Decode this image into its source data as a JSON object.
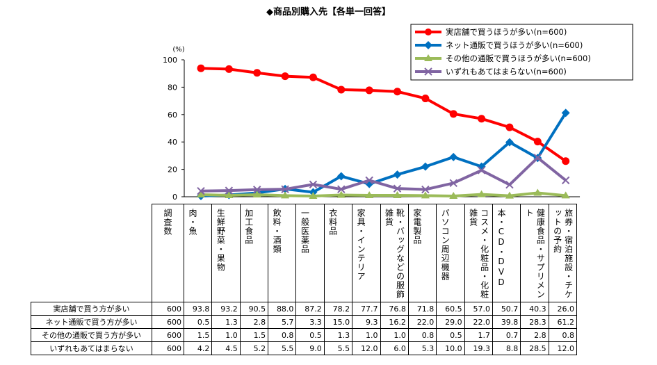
{
  "title": "◆商品別購入先【各単一回答】",
  "chart_data": {
    "type": "line",
    "unit_label": "(%)",
    "ylim": [
      0,
      100
    ],
    "yticks": [
      0,
      20,
      40,
      60,
      80,
      100
    ],
    "categories": [
      "肉・魚",
      "生鮮野菜・果物",
      "加工食品",
      "飲料・酒類",
      "一般医薬品",
      "衣料品",
      "家具・インテリア",
      "靴・バッグなどの服飾雑貨",
      "家電製品",
      "パソコン周辺機器",
      "コスメ・化粧品・化粧雑貨",
      "本・CD・DVD",
      "健康食品・サプリメント",
      "旅券・宿泊施設・チケットの予約"
    ],
    "series": [
      {
        "name": "実店舗で買うほうが多い(n=600)",
        "table_label": "実店舗で買う方が多い",
        "color": "#ff0000",
        "marker": "circle",
        "values": [
          93.8,
          93.2,
          90.5,
          88.0,
          87.2,
          78.2,
          77.7,
          76.8,
          71.8,
          60.5,
          57.0,
          50.7,
          40.3,
          26.0
        ]
      },
      {
        "name": "ネット通販で買うほうが多い(n=600)",
        "table_label": "ネット通販で買う方が多い",
        "color": "#0070c0",
        "marker": "diamond",
        "values": [
          0.5,
          1.3,
          2.8,
          5.7,
          3.3,
          15.0,
          9.3,
          16.2,
          22.0,
          29.0,
          22.0,
          39.8,
          28.3,
          61.2
        ]
      },
      {
        "name": "その他の通販で買うほうが多い(n=600)",
        "table_label": "その他の通販で買う方が多い",
        "color": "#9bbb59",
        "marker": "triangle",
        "values": [
          1.5,
          1.0,
          1.5,
          0.8,
          0.5,
          1.3,
          1.0,
          1.0,
          0.8,
          0.5,
          1.7,
          0.7,
          2.8,
          0.8
        ]
      },
      {
        "name": "いずれもあてはまらない(n=600)",
        "table_label": "いずれもあてはまらない",
        "color": "#8064a2",
        "marker": "x",
        "values": [
          4.2,
          4.5,
          5.2,
          5.5,
          9.0,
          5.5,
          12.0,
          6.0,
          5.3,
          10.0,
          19.3,
          8.8,
          28.5,
          12.0
        ]
      }
    ]
  },
  "table": {
    "sample_header": "調査数",
    "sample_size": "600",
    "category_labels": [
      "肉・魚",
      "生鮮野菜・果物",
      "加工食品",
      "飲料・酒類",
      "一般医薬品",
      "衣料品",
      "家具・インテリア",
      "靴・バッグなどの服飾雑貨",
      "家電製品",
      "パソコン周辺機器",
      "コスメ・化粧品・化粧雑貨",
      "本・CD・DVD",
      "健康食品・サプリメント",
      "旅券・宿泊施設・チケットの予約"
    ],
    "rows": [
      {
        "label": "実店舗で買う方が多い",
        "values": [
          "93.8",
          "93.2",
          "90.5",
          "88.0",
          "87.2",
          "78.2",
          "77.7",
          "76.8",
          "71.8",
          "60.5",
          "57.0",
          "50.7",
          "40.3",
          "26.0"
        ]
      },
      {
        "label": "ネット通販で買う方が多い",
        "values": [
          "0.5",
          "1.3",
          "2.8",
          "5.7",
          "3.3",
          "15.0",
          "9.3",
          "16.2",
          "22.0",
          "29.0",
          "22.0",
          "39.8",
          "28.3",
          "61.2"
        ]
      },
      {
        "label": "その他の通販で買う方が多い",
        "values": [
          "1.5",
          "1.0",
          "1.5",
          "0.8",
          "0.5",
          "1.3",
          "1.0",
          "1.0",
          "0.8",
          "0.5",
          "1.7",
          "0.7",
          "2.8",
          "0.8"
        ]
      },
      {
        "label": "いずれもあてはまらない",
        "values": [
          "4.2",
          "4.5",
          "5.2",
          "5.5",
          "9.0",
          "5.5",
          "12.0",
          "6.0",
          "5.3",
          "10.0",
          "19.3",
          "8.8",
          "28.5",
          "12.0"
        ]
      }
    ]
  }
}
